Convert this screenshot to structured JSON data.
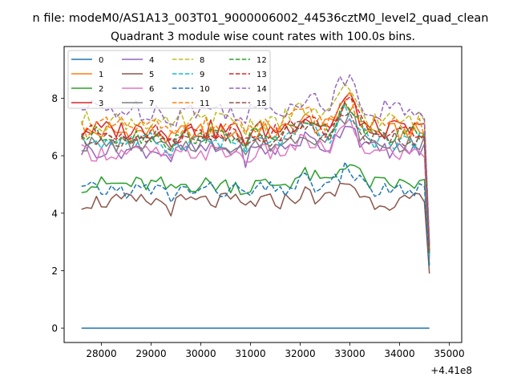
{
  "chart_data": {
    "type": "line",
    "suptitle": "n file: modeM0/AS1A13_003T01_9000006002_44536cztM0_level2_quad_clean",
    "title": "Quadrant 3 module wise count rates with 100.0s bins.",
    "xlabel": "",
    "ylabel": "",
    "x_offset_label": "+4.41e8",
    "xlim": [
      27250,
      35250
    ],
    "ylim": [
      -0.5,
      9.8
    ],
    "xticks": [
      28000,
      29000,
      30000,
      31000,
      32000,
      33000,
      34000,
      35000
    ],
    "yticks": [
      0,
      2,
      4,
      6,
      8
    ],
    "x_start": 27600,
    "x_step": 100,
    "grid": false,
    "legend_position": "top-left",
    "legend_columns": 4,
    "series": [
      {
        "name": "0",
        "color": "#1f77b4",
        "dash": "solid",
        "base": 0.0,
        "amp": 0.0,
        "phase": 0,
        "end": 0.0
      },
      {
        "name": "1",
        "color": "#ff7f0e",
        "dash": "solid",
        "base": 6.8,
        "amp": 0.35,
        "phase": 1,
        "end": 2.6
      },
      {
        "name": "2",
        "color": "#2ca02c",
        "dash": "solid",
        "base": 5.0,
        "amp": 0.3,
        "phase": 2,
        "end": 2.2
      },
      {
        "name": "3",
        "color": "#d62728",
        "dash": "solid",
        "base": 6.9,
        "amp": 0.35,
        "phase": 3,
        "end": 2.9
      },
      {
        "name": "4",
        "color": "#9467bd",
        "dash": "solid",
        "base": 6.2,
        "amp": 0.3,
        "phase": 4,
        "end": 2.5
      },
      {
        "name": "5",
        "color": "#8c564b",
        "dash": "solid",
        "base": 4.4,
        "amp": 0.3,
        "phase": 5,
        "end": 1.9
      },
      {
        "name": "6",
        "color": "#e377c2",
        "dash": "solid",
        "base": 6.1,
        "amp": 0.3,
        "phase": 6,
        "end": 2.4
      },
      {
        "name": "7",
        "color": "#7f7f7f",
        "dash": "solid",
        "base": 6.4,
        "amp": 0.3,
        "phase": 7,
        "end": 2.6
      },
      {
        "name": "8",
        "color": "#bcbd22",
        "dash": "dashed",
        "base": 7.2,
        "amp": 0.35,
        "phase": 8,
        "end": 2.8
      },
      {
        "name": "9",
        "color": "#17becf",
        "dash": "dashed",
        "base": 6.5,
        "amp": 0.3,
        "phase": 9,
        "end": 2.5
      },
      {
        "name": "10",
        "color": "#1f77b4",
        "dash": "dashed",
        "base": 4.8,
        "amp": 0.3,
        "phase": 10,
        "end": 2.1
      },
      {
        "name": "11",
        "color": "#ff7f0e",
        "dash": "dashed",
        "base": 7.0,
        "amp": 0.35,
        "phase": 11,
        "end": 2.7
      },
      {
        "name": "12",
        "color": "#2ca02c",
        "dash": "dashed",
        "base": 6.7,
        "amp": 0.3,
        "phase": 12,
        "end": 2.6
      },
      {
        "name": "13",
        "color": "#d62728",
        "dash": "dashed",
        "base": 6.8,
        "amp": 0.3,
        "phase": 13,
        "end": 2.7
      },
      {
        "name": "14",
        "color": "#9467bd",
        "dash": "dashed",
        "base": 7.6,
        "amp": 0.4,
        "phase": 14,
        "end": 3.0
      },
      {
        "name": "15",
        "color": "#8c564b",
        "dash": "dashed",
        "base": 6.6,
        "amp": 0.3,
        "phase": 15,
        "end": 2.6
      }
    ]
  }
}
